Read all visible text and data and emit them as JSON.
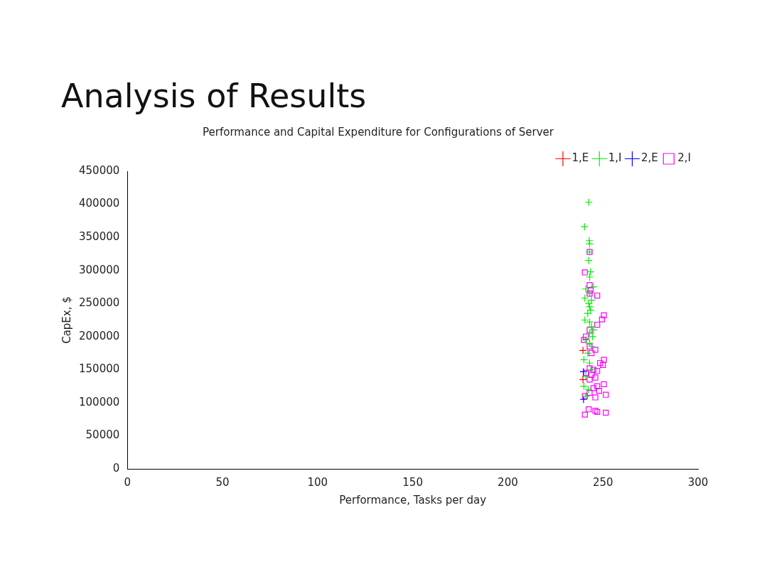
{
  "chart_data": {
    "type": "scatter",
    "title": "Analysis of Results",
    "subtitle": "Performance and Capital Expenditure for Configurations of Server",
    "xlabel": "Performance, Tasks per day",
    "ylabel": "CapEx, $",
    "xlim": [
      0,
      300
    ],
    "xticks": [
      0,
      50,
      100,
      150,
      200,
      250,
      300
    ],
    "ylim": [
      0,
      450000
    ],
    "yticks": [
      0,
      50000,
      100000,
      150000,
      200000,
      250000,
      300000,
      350000,
      400000,
      450000
    ],
    "grid": false,
    "legend": "top right",
    "series": [
      {
        "name": "1,E",
        "color": "#ff0000",
        "marker": "cross",
        "x": [
          239.5,
          239.5
        ],
        "values": [
          179000,
          135000
        ]
      },
      {
        "name": "1,I",
        "color": "#00ee00",
        "marker": "cross",
        "x": [
          242.5,
          240.3,
          242.8,
          243,
          243,
          242.5,
          243.5,
          243,
          245,
          241,
          243,
          240.5,
          244,
          242.5,
          243,
          243.5,
          242,
          240.5,
          243,
          244,
          245,
          243,
          244.5,
          241,
          243,
          244,
          242,
          240,
          243,
          244,
          241,
          240,
          242.5,
          241
        ],
        "values": [
          403000,
          366000,
          345000,
          340000,
          328000,
          315000,
          298000,
          290000,
          275000,
          272000,
          265000,
          258000,
          255000,
          250000,
          245000,
          240000,
          235000,
          225000,
          222000,
          215000,
          210000,
          205000,
          200000,
          195000,
          190000,
          185000,
          175000,
          165000,
          160000,
          150000,
          140000,
          125000,
          120000,
          110000
        ]
      },
      {
        "name": "2,E",
        "color": "#0000ff",
        "marker": "cross",
        "x": [
          239.8,
          239.8
        ],
        "values": [
          147000,
          105000
        ]
      },
      {
        "name": "2,I",
        "color": "#ff00ff",
        "marker": "square",
        "x": [
          240.5,
          243,
          243,
          243.5,
          243,
          247,
          250.5,
          249.5,
          247,
          243,
          241,
          240,
          243,
          246,
          244,
          250.5,
          248.5,
          250,
          243,
          245,
          247,
          241,
          244,
          246,
          243,
          250.5,
          247,
          245,
          248,
          243,
          251.5,
          240.5,
          246,
          242.5,
          247,
          251.5,
          240.5,
          246
        ],
        "values": [
          297000,
          328000,
          278000,
          270000,
          265000,
          262000,
          232000,
          226000,
          218000,
          210000,
          200000,
          195000,
          185000,
          180000,
          175000,
          165000,
          160000,
          157000,
          152000,
          150000,
          148000,
          145000,
          142000,
          138000,
          135000,
          128000,
          125000,
          122000,
          118000,
          115000,
          112000,
          110000,
          108000,
          90000,
          86000,
          85000,
          82000,
          88000
        ]
      }
    ]
  }
}
